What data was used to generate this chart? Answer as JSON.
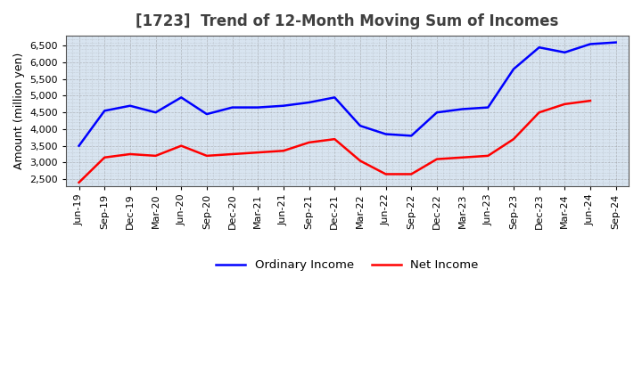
{
  "title": "[1723]  Trend of 12-Month Moving Sum of Incomes",
  "ylabel": "Amount (million yen)",
  "x_labels": [
    "Jun-19",
    "Sep-19",
    "Dec-19",
    "Mar-20",
    "Jun-20",
    "Sep-20",
    "Dec-20",
    "Mar-21",
    "Jun-21",
    "Sep-21",
    "Dec-21",
    "Mar-22",
    "Jun-22",
    "Sep-22",
    "Dec-22",
    "Mar-23",
    "Jun-23",
    "Sep-23",
    "Dec-23",
    "Mar-24",
    "Jun-24",
    "Sep-24"
  ],
  "ordinary_income": [
    3500,
    4550,
    4700,
    4500,
    4950,
    4450,
    4650,
    4650,
    4700,
    4800,
    4950,
    4100,
    3850,
    3800,
    4500,
    4600,
    4650,
    5800,
    6450,
    6300,
    6550,
    6600
  ],
  "net_income": [
    2400,
    3150,
    3250,
    3200,
    3500,
    3200,
    3250,
    3300,
    3350,
    3600,
    3700,
    3050,
    2650,
    2650,
    3100,
    3150,
    3200,
    3700,
    4500,
    4750,
    4850,
    null
  ],
  "ordinary_color": "#0000FF",
  "net_color": "#FF0000",
  "background_color": "#FFFFFF",
  "plot_bg_color": "#D8E4F0",
  "grid_color": "#888888",
  "title_color": "#404040",
  "ylim": [
    2300,
    6800
  ],
  "yticks": [
    2500,
    3000,
    3500,
    4000,
    4500,
    5000,
    5500,
    6000,
    6500
  ],
  "legend_labels": [
    "Ordinary Income",
    "Net Income"
  ],
  "title_fontsize": 12,
  "axis_fontsize": 9,
  "tick_fontsize": 8
}
